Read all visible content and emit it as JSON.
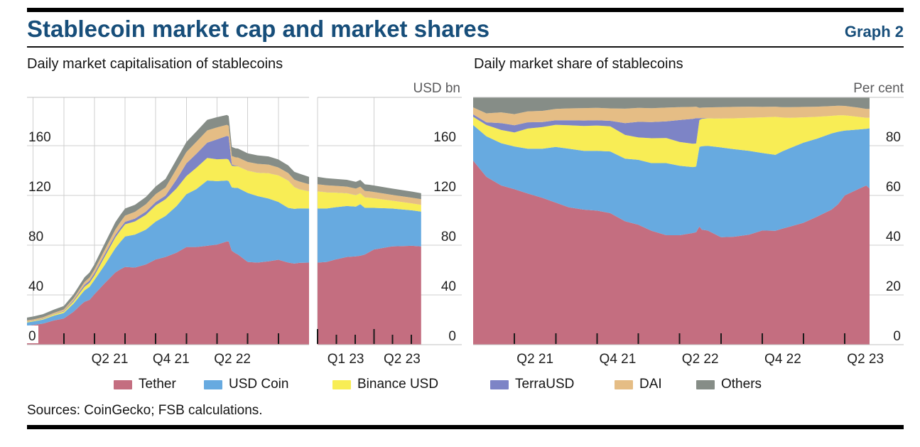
{
  "header": {
    "title": "Stablecoin market cap and market shares",
    "graph_label": "Graph 2"
  },
  "footer": {
    "sources": "Sources: CoinGecko; FSB calculations."
  },
  "colors": {
    "Tether": "#c46e80",
    "USD Coin": "#67aae0",
    "Binance USD": "#f8ed55",
    "TerraUSD": "#7d84c6",
    "DAI": "#e5bd85",
    "Others": "#868d87",
    "title_text": "#174e7a",
    "unit_text": "#5a5a5c",
    "gridline": "#cfcfcf",
    "plot_border": "#c2c2c2",
    "tick": "#1a1a1a"
  },
  "legend": {
    "market_cap": [
      "Tether",
      "USD Coin",
      "Binance USD"
    ],
    "market_share": [
      "TerraUSD",
      "DAI",
      "Others"
    ]
  },
  "chart_data": [
    {
      "type": "area",
      "stacked": true,
      "title": "Daily market capitalisation of stablecoins",
      "unit": "USD bn",
      "ylim": [
        0,
        199
      ],
      "grid": true,
      "y_gridlines": [
        40,
        80,
        120,
        160
      ],
      "y_ticks": [
        {
          "v": 0,
          "label": "0"
        },
        {
          "v": 40,
          "label": "40"
        },
        {
          "v": 80,
          "label": "80"
        },
        {
          "v": 120,
          "label": "120"
        },
        {
          "v": 160,
          "label": "160"
        }
      ],
      "y_labels_left": true,
      "y_labels_right": true,
      "stack_order": [
        "Tether",
        "USD Coin",
        "Binance USD",
        "TerraUSD",
        "DAI",
        "Others"
      ],
      "panels": [
        {
          "x": [
            2020.7,
            2020.75,
            2020.83,
            2020.92,
            2021.0,
            2021.08,
            2021.15,
            2021.17,
            2021.21,
            2021.25,
            2021.33,
            2021.42,
            2021.46,
            2021.5,
            2021.58,
            2021.67,
            2021.75,
            2021.83,
            2021.92,
            2022.0,
            2022.08,
            2022.17,
            2022.25,
            2022.33,
            2022.345,
            2022.37,
            2022.4,
            2022.42,
            2022.5,
            2022.58,
            2022.67,
            2022.75,
            2022.83,
            2022.88,
            2022.92,
            2023.0
          ],
          "x_labels": [
            {
              "t": 2021.375,
              "label": "Q2 21"
            },
            {
              "t": 2021.875,
              "label": "Q4 21"
            },
            {
              "t": 2022.375,
              "label": "Q2 22"
            }
          ],
          "series": [
            {
              "name": "Tether",
              "values": [
                15.3,
                15.8,
                16.9,
                19.5,
                21.0,
                26.5,
                33.0,
                34.5,
                36.0,
                40.5,
                49.0,
                58.0,
                60.5,
                62.5,
                62.0,
                64.5,
                68.5,
                70.5,
                74.0,
                78.5,
                78.5,
                79.5,
                80.5,
                83.0,
                83.0,
                75.5,
                73.5,
                72.5,
                66.5,
                66.0,
                67.0,
                68.3,
                66.0,
                65.2,
                65.8,
                66.0
              ]
            },
            {
              "name": "USD Coin",
              "values": [
                2.6,
                2.8,
                3.2,
                3.9,
                4.5,
                6.5,
                8.5,
                9.2,
                10.5,
                11.5,
                14.5,
                19.5,
                22.0,
                24.5,
                26.5,
                28.0,
                30.5,
                33.0,
                37.5,
                42.5,
                46.5,
                52.5,
                51.0,
                49.0,
                48.5,
                51.0,
                52.5,
                53.5,
                55.5,
                53.5,
                50.5,
                46.5,
                44.0,
                44.0,
                43.8,
                43.5
              ]
            },
            {
              "name": "Binance USD",
              "values": [
                0.5,
                0.5,
                0.6,
                0.9,
                1.1,
                1.8,
                2.6,
                2.9,
                3.2,
                3.6,
                6.5,
                8.6,
                9.2,
                9.8,
                10.6,
                11.9,
                13.0,
                13.4,
                14.2,
                14.6,
                17.2,
                18.2,
                17.6,
                17.4,
                17.2,
                17.3,
                17.4,
                17.5,
                17.8,
                18.8,
                20.3,
                21.3,
                22.0,
                17.5,
                15.5,
                13.8
              ]
            },
            {
              "name": "TerraUSD",
              "values": [
                0.2,
                0.2,
                0.3,
                0.2,
                0.5,
                0.9,
                1.4,
                1.5,
                1.7,
                1.9,
                2.0,
                2.0,
                2.0,
                2.0,
                2.3,
                2.6,
                2.7,
                2.9,
                7.2,
                10.2,
                11.2,
                12.2,
                16.0,
                18.5,
                18.7,
                1.2,
                0.4,
                0.2,
                0.1,
                0.1,
                0.1,
                0.1,
                0.1,
                0.1,
                0.1,
                0.1
              ]
            },
            {
              "name": "DAI",
              "values": [
                0.9,
                0.9,
                1.0,
                1.1,
                1.2,
                1.6,
                2.2,
                2.4,
                2.6,
                2.9,
                3.6,
                4.4,
                4.7,
                5.0,
                5.4,
                5.9,
                6.4,
                6.6,
                8.6,
                9.1,
                9.6,
                9.9,
                9.6,
                8.9,
                8.6,
                6.7,
                6.8,
                6.8,
                7.0,
                7.0,
                6.9,
                6.3,
                5.9,
                5.9,
                6.0,
                5.6
              ]
            },
            {
              "name": "Others",
              "values": [
                2.3,
                2.4,
                2.5,
                2.6,
                2.8,
                3.2,
                3.6,
                3.8,
                4.0,
                4.2,
                5.0,
                5.9,
                5.8,
                5.7,
                5.6,
                5.9,
                6.1,
                6.9,
                7.6,
                8.1,
                8.3,
                8.5,
                8.2,
                7.9,
                7.8,
                7.4,
                7.3,
                7.2,
                7.0,
                6.8,
                6.6,
                6.4,
                6.2,
                6.3,
                6.4,
                5.9
              ]
            }
          ]
        },
        {
          "x": [
            2023.0,
            2023.04,
            2023.08,
            2023.13,
            2023.17,
            2023.19,
            2023.21,
            2023.23,
            2023.25,
            2023.33,
            2023.42,
            2023.46
          ],
          "x_labels": [
            {
              "t": 2023.125,
              "label": "Q1 23"
            },
            {
              "t": 2023.375,
              "label": "Q2 23"
            }
          ],
          "series": [
            {
              "name": "Tether",
              "values": [
                66.0,
                66.5,
                68.5,
                70.5,
                71.0,
                71.5,
                72.5,
                74.5,
                76.5,
                79.0,
                79.5,
                79.0
              ]
            },
            {
              "name": "USD Coin",
              "values": [
                43.5,
                43.0,
                42.0,
                41.0,
                40.0,
                41.5,
                37.5,
                35.5,
                33.5,
                30.5,
                28.5,
                28.0
              ]
            },
            {
              "name": "Binance USD",
              "values": [
                13.8,
                13.0,
                11.8,
                10.3,
                9.3,
                8.9,
                8.5,
                8.2,
                7.8,
                6.3,
                5.6,
                5.4
              ]
            },
            {
              "name": "TerraUSD",
              "values": [
                0.1,
                0.1,
                0.1,
                0.1,
                0.1,
                0.1,
                0.1,
                0.1,
                0.1,
                0,
                0,
                0
              ]
            },
            {
              "name": "DAI",
              "values": [
                5.6,
                5.5,
                5.3,
                5.2,
                5.1,
                5.1,
                5.0,
                5.0,
                4.9,
                4.7,
                4.6,
                4.6
              ]
            },
            {
              "name": "Others",
              "values": [
                5.9,
                5.8,
                5.6,
                5.5,
                5.4,
                5.4,
                5.3,
                5.3,
                5.2,
                5.1,
                4.9,
                4.8
              ]
            }
          ]
        }
      ]
    },
    {
      "type": "area",
      "stacked": true,
      "title": "Daily market share of stablecoins",
      "unit": "Per cent",
      "ylim": [
        0,
        99.4
      ],
      "grid": true,
      "y_gridlines": [
        20,
        40,
        60,
        80
      ],
      "y_ticks": [
        {
          "v": 0,
          "label": "0"
        },
        {
          "v": 20,
          "label": "20"
        },
        {
          "v": 40,
          "label": "40"
        },
        {
          "v": 60,
          "label": "60"
        },
        {
          "v": 80,
          "label": "80"
        }
      ],
      "y_labels_left": false,
      "y_labels_right": true,
      "stack_order": [
        "Tether",
        "USD Coin",
        "Binance USD",
        "TerraUSD",
        "DAI",
        "Others"
      ],
      "panels": [
        {
          "x": [
            2021.0,
            2021.08,
            2021.17,
            2021.25,
            2021.33,
            2021.42,
            2021.5,
            2021.58,
            2021.67,
            2021.75,
            2021.83,
            2021.92,
            2022.0,
            2022.08,
            2022.17,
            2022.25,
            2022.33,
            2022.35,
            2022.37,
            2022.385,
            2022.42,
            2022.5,
            2022.58,
            2022.67,
            2022.75,
            2022.83,
            2022.87,
            2022.92,
            2023.0,
            2023.08,
            2023.17,
            2023.21,
            2023.25,
            2023.33,
            2023.38,
            2023.4
          ],
          "x_labels": [
            {
              "t": 2021.375,
              "label": "Q2 21"
            },
            {
              "t": 2021.875,
              "label": "Q4 21"
            },
            {
              "t": 2022.375,
              "label": "Q2 22"
            },
            {
              "t": 2022.875,
              "label": "Q4 22"
            },
            {
              "t": 2023.375,
              "label": "Q2 23"
            }
          ],
          "series": [
            {
              "name": "Tether",
              "values": [
                74.0,
                67.5,
                64.0,
                62.5,
                60.8,
                59.0,
                57.1,
                55.2,
                54.3,
                53.9,
                52.9,
                49.6,
                48.2,
                45.8,
                44.0,
                44.0,
                44.9,
                45.2,
                47.5,
                46.2,
                45.9,
                43.2,
                43.4,
                44.2,
                45.9,
                45.8,
                46.6,
                47.5,
                49.0,
                51.4,
                54.3,
                56.5,
                60.0,
                62.5,
                64.0,
                62.8
              ]
            },
            {
              "name": "USD Coin",
              "values": [
                14.3,
                16.3,
                17.0,
                17.2,
                18.0,
                19.8,
                22.4,
                23.6,
                23.6,
                24.0,
                24.8,
                25.2,
                26.1,
                27.2,
                29.0,
                27.9,
                26.5,
                26.4,
                32.0,
                33.6,
                34.0,
                36.1,
                35.2,
                33.7,
                31.2,
                30.5,
                31.1,
                31.6,
                32.2,
                31.4,
                30.6,
                29.1,
                26.1,
                24.0,
                22.8,
                24.2
              ]
            },
            {
              "name": "Binance USD",
              "values": [
                3.3,
                4.5,
                5.3,
                5.6,
                8.1,
                8.7,
                8.9,
                9.4,
                10.0,
                10.2,
                10.1,
                9.5,
                9.0,
                10.0,
                10.1,
                9.6,
                9.4,
                9.3,
                10.8,
                11.0,
                11.1,
                11.6,
                12.4,
                13.3,
                14.3,
                15.3,
                13.6,
                12.1,
                10.2,
                8.8,
                7.1,
                6.6,
                6.1,
                5.1,
                4.4,
                4.2
              ]
            },
            {
              "name": "TerraUSD",
              "values": [
                1.0,
                1.1,
                2.8,
                2.9,
                2.5,
                2.0,
                1.8,
                2.0,
                2.2,
                2.1,
                2.2,
                4.8,
                6.3,
                6.5,
                6.7,
                8.8,
                10.0,
                10.2,
                0.8,
                0.3,
                0.1,
                0,
                0,
                0,
                0,
                0,
                0,
                0,
                0,
                0,
                0,
                0,
                0,
                0,
                0,
                0
              ]
            },
            {
              "name": "DAI",
              "values": [
                2.8,
                3.6,
                4.3,
                4.5,
                4.4,
                4.5,
                4.6,
                4.8,
                5.0,
                5.0,
                5.0,
                5.8,
                5.6,
                5.6,
                5.5,
                5.2,
                4.8,
                4.6,
                4.1,
                4.2,
                4.3,
                4.6,
                4.6,
                4.5,
                4.2,
                4.1,
                4.2,
                4.3,
                4.2,
                4.1,
                3.9,
                3.9,
                3.8,
                3.7,
                3.6,
                3.6
              ]
            },
            {
              "name": "Others",
              "values": [
                4.6,
                7.0,
                6.6,
                7.3,
                6.2,
                6.0,
                5.2,
                5.0,
                4.9,
                4.8,
                5.0,
                5.1,
                4.8,
                4.9,
                4.7,
                4.5,
                4.4,
                4.3,
                4.8,
                4.7,
                4.6,
                4.5,
                4.4,
                4.3,
                4.4,
                4.3,
                4.5,
                4.5,
                4.4,
                4.3,
                4.1,
                3.9,
                4.0,
                4.7,
                5.2,
                5.2
              ]
            }
          ]
        }
      ]
    }
  ]
}
